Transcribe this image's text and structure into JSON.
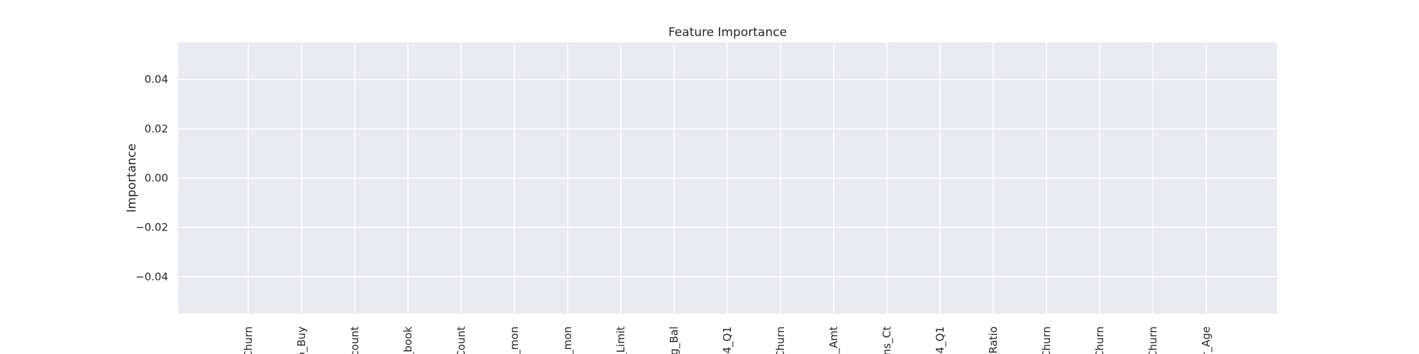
{
  "chart_data": {
    "type": "bar",
    "title": "Feature Importance",
    "xlabel": "",
    "ylabel": "Importance",
    "categories": [
      "Churn",
      "o_Buy",
      "count",
      "_book",
      "Count",
      "_mon",
      "_mon",
      "_Limit",
      "g_Bal",
      "4_Q1",
      "Churn",
      "s_Amt",
      "ns_Ct",
      "4_Q1",
      "_Ratio",
      "Churn",
      "Churn",
      "Churn",
      "r_Age"
    ],
    "values": [
      0,
      0,
      0,
      0,
      0,
      0,
      0,
      0,
      0,
      0,
      0,
      0,
      0,
      0,
      0,
      0,
      0,
      0,
      0
    ],
    "ylim": [
      -0.055,
      0.055
    ],
    "yticks": [
      0.04,
      0.02,
      0.0,
      -0.02,
      -0.04
    ],
    "ytick_labels": [
      "0.04",
      "0.02",
      "0.00",
      "−0.02",
      "−0.04"
    ],
    "grid": true,
    "colors": {
      "background": "#eaeaf2",
      "grid": "#ffffff",
      "text": "#262626"
    }
  }
}
